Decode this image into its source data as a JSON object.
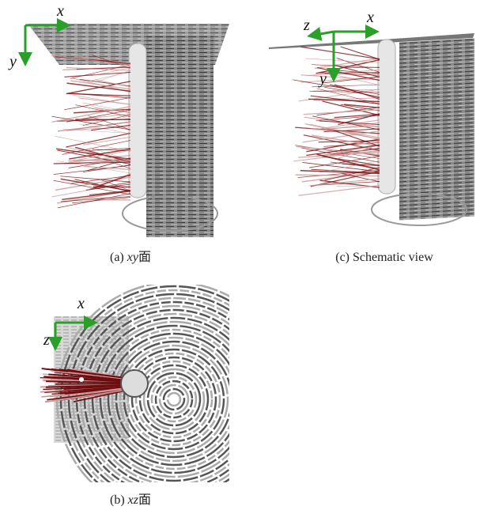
{
  "panels": [
    {
      "caption": {
        "label": "(a)",
        "variable": "xy",
        "suffix": "面"
      },
      "axes": [
        "x",
        "y"
      ]
    },
    {
      "caption": {
        "label": "(c)",
        "text": "Schematic view"
      },
      "axes": [
        "z",
        "x",
        "y"
      ]
    },
    {
      "caption": {
        "label": "(b)",
        "variable": "xz",
        "suffix": "面"
      },
      "axes": [
        "x",
        "z"
      ]
    }
  ]
}
